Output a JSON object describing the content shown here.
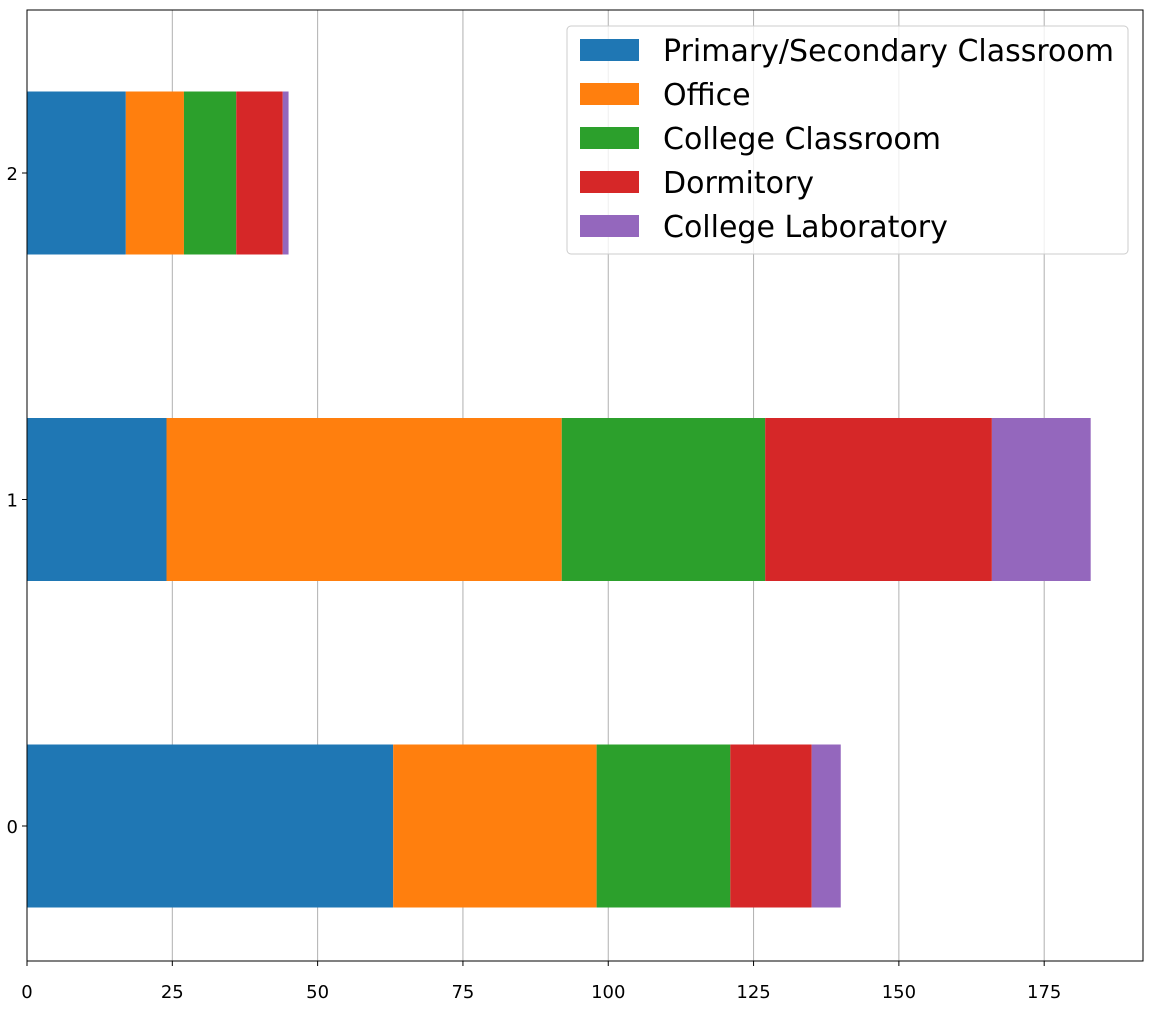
{
  "chart_data": {
    "type": "bar",
    "orientation": "horizontal",
    "stacked": true,
    "categories": [
      "0",
      "1",
      "2"
    ],
    "series": [
      {
        "name": "Primary/Secondary Classroom",
        "color": "#1f77b4",
        "values": [
          63,
          24,
          17
        ]
      },
      {
        "name": "Office",
        "color": "#ff7f0e",
        "values": [
          35,
          68,
          10
        ]
      },
      {
        "name": "College Classroom",
        "color": "#2ca02c",
        "values": [
          23,
          35,
          9
        ]
      },
      {
        "name": "Dormitory",
        "color": "#d62728",
        "values": [
          14,
          39,
          8
        ]
      },
      {
        "name": "College Laboratory",
        "color": "#9467bd",
        "values": [
          5,
          17,
          1
        ]
      }
    ],
    "xlim": [
      0,
      192
    ],
    "xticks": [
      0,
      25,
      50,
      75,
      100,
      125,
      150,
      175
    ],
    "grid": "x",
    "legend_position": "top-right"
  }
}
